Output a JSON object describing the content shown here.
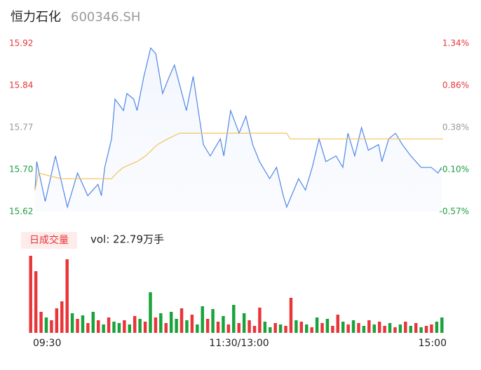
{
  "chart_data": {
    "type": "intraday",
    "title": "恒力石化",
    "subtitle": "600346.SH",
    "xlim": [
      0,
      240
    ],
    "xticks": [
      {
        "value": 0,
        "label": "09:30"
      },
      {
        "value": 120,
        "label": "11:30/13:00"
      },
      {
        "value": 240,
        "label": "15:00"
      }
    ],
    "ylim": [
      15.622,
      15.918
    ],
    "yticks": [
      {
        "value": 15.918,
        "label": "15.92"
      },
      {
        "value": 15.844,
        "label": "15.84"
      },
      {
        "value": 15.77,
        "label": "15.77"
      },
      {
        "value": 15.696,
        "label": "15.70"
      },
      {
        "value": 15.622,
        "label": "15.62"
      }
    ],
    "ytick_colors": [
      "#e8353a",
      "#e8353a",
      "#999999",
      "#1a9c3c",
      "#1a9c3c"
    ],
    "y2lim": [
      -0.575,
      1.337
    ],
    "y2ticks": [
      {
        "value": 1.337,
        "label": "1.34%"
      },
      {
        "value": 0.859,
        "label": "0.86%"
      },
      {
        "value": 0.381,
        "label": "0.38%"
      },
      {
        "value": -0.097,
        "label": "-0.10%"
      },
      {
        "value": -0.575,
        "label": "-0.57%"
      }
    ],
    "series": [
      {
        "color": "#4f86e8",
        "x": [
          0,
          1,
          6,
          12,
          19,
          25,
          31,
          37,
          39,
          41,
          45,
          47,
          52,
          54,
          58,
          60,
          64,
          68,
          71,
          75,
          79,
          82,
          89,
          93,
          96,
          99,
          103,
          109,
          111,
          115,
          120,
          124,
          128,
          132,
          138,
          142,
          146,
          148,
          155,
          159,
          163,
          167,
          171,
          177,
          181,
          184,
          188,
          192,
          196,
          202,
          204,
          208,
          212,
          216,
          221,
          227,
          233,
          237,
          239
        ],
        "values": [
          15.66,
          15.71,
          15.64,
          15.72,
          15.63,
          15.69,
          15.65,
          15.67,
          15.65,
          15.7,
          15.75,
          15.82,
          15.8,
          15.83,
          15.82,
          15.8,
          15.86,
          15.91,
          15.9,
          15.83,
          15.86,
          15.88,
          15.8,
          15.86,
          15.8,
          15.74,
          15.72,
          15.75,
          15.72,
          15.8,
          15.76,
          15.79,
          15.74,
          15.71,
          15.68,
          15.7,
          15.65,
          15.63,
          15.68,
          15.66,
          15.7,
          15.75,
          15.71,
          15.72,
          15.7,
          15.76,
          15.72,
          15.77,
          15.73,
          15.74,
          15.71,
          15.75,
          15.76,
          15.74,
          15.72,
          15.7,
          15.7,
          15.69,
          15.7
        ]
      },
      {
        "color": "#f5c25c",
        "x": [
          0,
          2,
          15,
          45,
          48,
          52,
          60,
          65,
          72,
          78,
          85,
          148,
          150,
          240
        ],
        "values": [
          15.66,
          15.69,
          15.68,
          15.68,
          15.69,
          15.7,
          15.71,
          15.72,
          15.74,
          15.75,
          15.76,
          15.76,
          15.75,
          15.75
        ]
      }
    ],
    "volume_title": "日成交量",
    "volume_label": "vol: 22.79万手",
    "volume_lim": [
      0,
      110
    ],
    "volume": [
      110,
      88,
      30,
      22,
      18,
      35,
      45,
      105,
      28,
      20,
      25,
      14,
      30,
      18,
      12,
      22,
      16,
      14,
      18,
      12,
      24,
      20,
      16,
      58,
      22,
      28,
      14,
      30,
      20,
      35,
      18,
      26,
      12,
      38,
      20,
      34,
      16,
      24,
      12,
      40,
      14,
      28,
      18,
      10,
      36,
      16,
      8,
      14,
      12,
      10,
      50,
      18,
      16,
      12,
      8,
      22,
      14,
      20,
      10,
      26,
      16,
      12,
      18,
      14,
      10,
      18,
      12,
      16,
      10,
      14,
      8,
      12,
      16,
      10,
      14,
      8,
      10,
      12,
      16,
      22
    ],
    "volume_dir": [
      "r",
      "r",
      "r",
      "g",
      "r",
      "r",
      "r",
      "r",
      "g",
      "r",
      "g",
      "r",
      "g",
      "r",
      "g",
      "r",
      "g",
      "g",
      "r",
      "g",
      "r",
      "g",
      "r",
      "g",
      "r",
      "g",
      "r",
      "g",
      "g",
      "r",
      "g",
      "r",
      "g",
      "g",
      "r",
      "g",
      "r",
      "g",
      "r",
      "g",
      "r",
      "g",
      "r",
      "r",
      "r",
      "g",
      "g",
      "r",
      "g",
      "r",
      "r",
      "g",
      "r",
      "g",
      "r",
      "g",
      "r",
      "g",
      "r",
      "r",
      "g",
      "r",
      "g",
      "r",
      "g",
      "r",
      "g",
      "r",
      "r",
      "g",
      "r",
      "g",
      "r",
      "g",
      "r",
      "g",
      "r",
      "r",
      "g",
      "g"
    ],
    "volume_colors": {
      "r": "#e8353a",
      "g": "#1aa33a"
    }
  }
}
